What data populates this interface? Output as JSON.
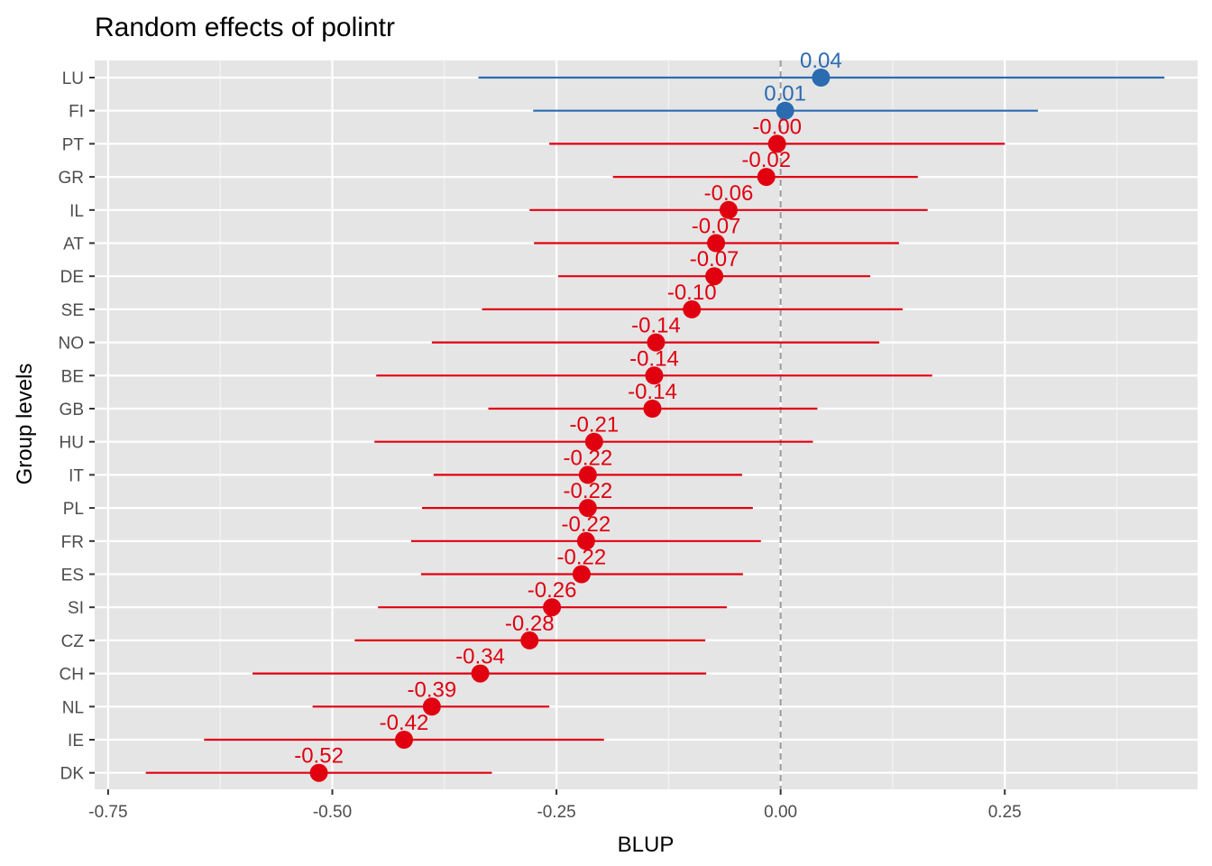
{
  "chart_data": {
    "type": "scatter",
    "title": "Random effects of  polintr",
    "xlabel": "BLUP",
    "ylabel": "Group levels",
    "xlim": [
      -0.765,
      0.465
    ],
    "x_ticks": [
      -0.75,
      -0.5,
      -0.25,
      0.0,
      0.25
    ],
    "x_tick_labels": [
      "-0.75",
      "-0.50",
      "-0.25",
      "0.00",
      "0.25"
    ],
    "reference_line": 0.0,
    "grid": true,
    "legend": "none",
    "colors": {
      "positive": "#2b6bb0",
      "negative": "#e00010",
      "panel": "#e5e5e5",
      "grid": "#ffffff",
      "reference": "#999999"
    },
    "points": [
      {
        "group": "LU",
        "value": 0.045,
        "lower": -0.337,
        "upper": 0.428,
        "label": "0.04"
      },
      {
        "group": "FI",
        "value": 0.005,
        "lower": -0.276,
        "upper": 0.287,
        "label": "0.01"
      },
      {
        "group": "PT",
        "value": -0.004,
        "lower": -0.258,
        "upper": 0.25,
        "label": "-0.00"
      },
      {
        "group": "GR",
        "value": -0.016,
        "lower": -0.187,
        "upper": 0.153,
        "label": "-0.02"
      },
      {
        "group": "IL",
        "value": -0.058,
        "lower": -0.28,
        "upper": 0.164,
        "label": "-0.06"
      },
      {
        "group": "AT",
        "value": -0.072,
        "lower": -0.275,
        "upper": 0.132,
        "label": "-0.07"
      },
      {
        "group": "DE",
        "value": -0.074,
        "lower": -0.248,
        "upper": 0.1,
        "label": "-0.07"
      },
      {
        "group": "SE",
        "value": -0.099,
        "lower": -0.333,
        "upper": 0.136,
        "label": "-0.10"
      },
      {
        "group": "NO",
        "value": -0.139,
        "lower": -0.389,
        "upper": 0.11,
        "label": "-0.14"
      },
      {
        "group": "BE",
        "value": -0.141,
        "lower": -0.451,
        "upper": 0.169,
        "label": "-0.14"
      },
      {
        "group": "GB",
        "value": -0.143,
        "lower": -0.326,
        "upper": 0.041,
        "label": "-0.14"
      },
      {
        "group": "HU",
        "value": -0.208,
        "lower": -0.453,
        "upper": 0.036,
        "label": "-0.21"
      },
      {
        "group": "IT",
        "value": -0.215,
        "lower": -0.387,
        "upper": -0.043,
        "label": "-0.22"
      },
      {
        "group": "PL",
        "value": -0.215,
        "lower": -0.4,
        "upper": -0.031,
        "label": "-0.22"
      },
      {
        "group": "FR",
        "value": -0.217,
        "lower": -0.412,
        "upper": -0.022,
        "label": "-0.22"
      },
      {
        "group": "ES",
        "value": -0.222,
        "lower": -0.401,
        "upper": -0.042,
        "label": "-0.22"
      },
      {
        "group": "SI",
        "value": -0.255,
        "lower": -0.449,
        "upper": -0.06,
        "label": "-0.26"
      },
      {
        "group": "CZ",
        "value": -0.28,
        "lower": -0.475,
        "upper": -0.084,
        "label": "-0.28"
      },
      {
        "group": "CH",
        "value": -0.335,
        "lower": -0.589,
        "upper": -0.083,
        "label": "-0.34"
      },
      {
        "group": "NL",
        "value": -0.389,
        "lower": -0.522,
        "upper": -0.258,
        "label": "-0.39"
      },
      {
        "group": "IE",
        "value": -0.42,
        "lower": -0.643,
        "upper": -0.197,
        "label": "-0.42"
      },
      {
        "group": "DK",
        "value": -0.515,
        "lower": -0.708,
        "upper": -0.322,
        "label": "-0.52"
      }
    ]
  }
}
